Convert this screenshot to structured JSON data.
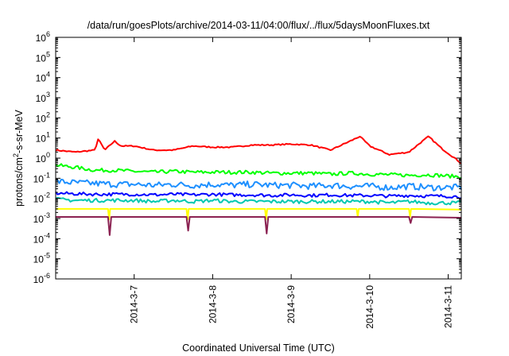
{
  "chart_data": {
    "type": "line",
    "title": "/data/run/goesPlots/archive/2014-03-11/04:00/flux/../flux/5daysMoonFluxes.txt",
    "xlabel": "Coordinated Universal Time (UTC)",
    "ylabel": "protons/cm²-s-sr-MeV",
    "ylabel_parts": {
      "pre": "protons/cm",
      "sup": "2",
      "post": "-s-sr-MeV"
    },
    "yscale": "log",
    "ylim": [
      1e-06,
      1000000.0
    ],
    "xlim": [
      "2014-03-06 00:00",
      "2014-03-11 04:00"
    ],
    "grid": false,
    "yticks": [
      {
        "base": "10",
        "exp": "-6"
      },
      {
        "base": "10",
        "exp": "-5"
      },
      {
        "base": "10",
        "exp": "-4"
      },
      {
        "base": "10",
        "exp": "-3"
      },
      {
        "base": "10",
        "exp": "-2"
      },
      {
        "base": "10",
        "exp": "-1"
      },
      {
        "base": "10",
        "exp": "0"
      },
      {
        "base": "10",
        "exp": "1"
      },
      {
        "base": "10",
        "exp": "2"
      },
      {
        "base": "10",
        "exp": "3"
      },
      {
        "base": "10",
        "exp": "4"
      },
      {
        "base": "10",
        "exp": "5"
      },
      {
        "base": "10",
        "exp": "6"
      }
    ],
    "xticks": [
      {
        "label": "2014-3-7",
        "t": "2014-03-07 00:00"
      },
      {
        "label": "2014-3-8",
        "t": "2014-03-08 00:00"
      },
      {
        "label": "2014-3-9",
        "t": "2014-03-09 00:00"
      },
      {
        "label": "2014-3-10",
        "t": "2014-03-10 00:00"
      },
      {
        "label": "2014-3-11",
        "t": "2014-03-11 00:00"
      }
    ],
    "series": [
      {
        "color": "#ff0000",
        "x": [
          "2014-03-06 00:00",
          "2014-03-06 06:00",
          "2014-03-06 12:00",
          "2014-03-06 13:00",
          "2014-03-06 15:00",
          "2014-03-06 18:00",
          "2014-03-06 20:00",
          "2014-03-07 00:00",
          "2014-03-07 06:00",
          "2014-03-07 12:00",
          "2014-03-07 18:00",
          "2014-03-08 00:00",
          "2014-03-08 06:00",
          "2014-03-08 12:00",
          "2014-03-08 18:00",
          "2014-03-09 00:00",
          "2014-03-09 06:00",
          "2014-03-09 12:00",
          "2014-03-09 18:00",
          "2014-03-09 21:00",
          "2014-03-10 00:00",
          "2014-03-10 06:00",
          "2014-03-10 12:00",
          "2014-03-10 15:00",
          "2014-03-10 18:00",
          "2014-03-10 22:00",
          "2014-03-11 02:00",
          "2014-03-11 04:00"
        ],
        "y": [
          2.5,
          2.0,
          2.5,
          9.0,
          2.5,
          7.0,
          4.0,
          4.0,
          2.5,
          2.5,
          4.0,
          3.5,
          3.5,
          4.5,
          4.5,
          5.0,
          4.5,
          2.5,
          7.0,
          12.0,
          4.0,
          1.5,
          2.0,
          5.0,
          12.0,
          3.0,
          1.0,
          0.55
        ]
      },
      {
        "color": "#00ff00",
        "x": [
          "2014-03-06 00:00",
          "2014-03-06 06:00",
          "2014-03-06 12:00",
          "2014-03-06 18:00",
          "2014-03-07 00:00",
          "2014-03-07 06:00",
          "2014-03-07 12:00",
          "2014-03-07 18:00",
          "2014-03-08 00:00",
          "2014-03-08 06:00",
          "2014-03-08 12:00",
          "2014-03-08 18:00",
          "2014-03-09 00:00",
          "2014-03-09 06:00",
          "2014-03-09 12:00",
          "2014-03-09 18:00",
          "2014-03-10 00:00",
          "2014-03-10 06:00",
          "2014-03-10 12:00",
          "2014-03-10 18:00",
          "2014-03-11 00:00",
          "2014-03-11 04:00"
        ],
        "y": [
          0.45,
          0.35,
          0.25,
          0.25,
          0.22,
          0.2,
          0.22,
          0.2,
          0.2,
          0.2,
          0.2,
          0.18,
          0.18,
          0.18,
          0.16,
          0.18,
          0.16,
          0.15,
          0.14,
          0.15,
          0.13,
          0.12
        ]
      },
      {
        "color": "#1e90ff",
        "x": [
          "2014-03-06 00:00",
          "2014-03-06 06:00",
          "2014-03-06 12:00",
          "2014-03-06 18:00",
          "2014-03-07 00:00",
          "2014-03-07 06:00",
          "2014-03-07 12:00",
          "2014-03-07 18:00",
          "2014-03-08 00:00",
          "2014-03-08 06:00",
          "2014-03-08 12:00",
          "2014-03-08 18:00",
          "2014-03-09 00:00",
          "2014-03-09 06:00",
          "2014-03-09 12:00",
          "2014-03-09 18:00",
          "2014-03-10 00:00",
          "2014-03-10 06:00",
          "2014-03-10 12:00",
          "2014-03-10 18:00",
          "2014-03-11 00:00",
          "2014-03-11 04:00"
        ],
        "y": [
          0.07,
          0.06,
          0.055,
          0.05,
          0.05,
          0.045,
          0.05,
          0.045,
          0.05,
          0.045,
          0.05,
          0.045,
          0.045,
          0.04,
          0.045,
          0.04,
          0.04,
          0.035,
          0.04,
          0.035,
          0.035,
          0.035
        ]
      },
      {
        "color": "#0000ff",
        "x": [
          "2014-03-06 00:00",
          "2014-03-06 06:00",
          "2014-03-06 12:00",
          "2014-03-06 18:00",
          "2014-03-07 00:00",
          "2014-03-07 06:00",
          "2014-03-07 12:00",
          "2014-03-07 18:00",
          "2014-03-08 00:00",
          "2014-03-08 06:00",
          "2014-03-08 12:00",
          "2014-03-08 18:00",
          "2014-03-09 00:00",
          "2014-03-09 06:00",
          "2014-03-09 12:00",
          "2014-03-09 18:00",
          "2014-03-10 00:00",
          "2014-03-10 06:00",
          "2014-03-10 12:00",
          "2014-03-10 18:00",
          "2014-03-11 00:00",
          "2014-03-11 04:00"
        ],
        "y": [
          0.018,
          0.017,
          0.016,
          0.016,
          0.016,
          0.015,
          0.016,
          0.015,
          0.016,
          0.015,
          0.015,
          0.014,
          0.015,
          0.014,
          0.015,
          0.014,
          0.014,
          0.013,
          0.014,
          0.013,
          0.013,
          0.012
        ]
      },
      {
        "color": "#00c8b0",
        "x": [
          "2014-03-06 00:00",
          "2014-03-06 06:00",
          "2014-03-06 12:00",
          "2014-03-06 18:00",
          "2014-03-07 00:00",
          "2014-03-07 06:00",
          "2014-03-07 12:00",
          "2014-03-07 18:00",
          "2014-03-08 00:00",
          "2014-03-08 06:00",
          "2014-03-08 12:00",
          "2014-03-08 18:00",
          "2014-03-09 00:00",
          "2014-03-09 06:00",
          "2014-03-09 12:00",
          "2014-03-09 18:00",
          "2014-03-10 00:00",
          "2014-03-10 06:00",
          "2014-03-10 12:00",
          "2014-03-10 18:00",
          "2014-03-11 00:00",
          "2014-03-11 04:00"
        ],
        "y": [
          0.009,
          0.008,
          0.008,
          0.008,
          0.008,
          0.007,
          0.008,
          0.007,
          0.008,
          0.007,
          0.007,
          0.007,
          0.007,
          0.007,
          0.007,
          0.007,
          0.007,
          0.006,
          0.007,
          0.006,
          0.006,
          0.006
        ]
      },
      {
        "color": "#ffff00",
        "x": [
          "2014-03-06 00:00",
          "2014-03-06 16:00",
          "2014-03-06 16:20",
          "2014-03-06 16:40",
          "2014-03-07 16:00",
          "2014-03-07 16:20",
          "2014-03-07 16:40",
          "2014-03-08 16:00",
          "2014-03-08 16:20",
          "2014-03-08 16:40",
          "2014-03-09 20:00",
          "2014-03-09 20:20",
          "2014-03-09 20:40",
          "2014-03-10 12:00",
          "2014-03-10 12:20",
          "2014-03-10 12:40",
          "2014-03-11 04:00"
        ],
        "y": [
          0.003,
          0.003,
          0.0009,
          0.003,
          0.003,
          0.0009,
          0.003,
          0.003,
          0.0009,
          0.003,
          0.003,
          0.0012,
          0.003,
          0.003,
          0.0012,
          0.003,
          0.0028
        ]
      },
      {
        "color": "#8b2252",
        "x": [
          "2014-03-06 00:00",
          "2014-03-06 16:00",
          "2014-03-06 16:30",
          "2014-03-06 17:00",
          "2014-03-07 16:00",
          "2014-03-07 16:30",
          "2014-03-07 17:00",
          "2014-03-08 16:00",
          "2014-03-08 16:30",
          "2014-03-08 17:00",
          "2014-03-10 12:00",
          "2014-03-10 12:30",
          "2014-03-10 13:00",
          "2014-03-11 04:00"
        ],
        "y": [
          0.0012,
          0.0012,
          0.00015,
          0.0012,
          0.0012,
          0.00025,
          0.0012,
          0.0012,
          0.00018,
          0.0012,
          0.0012,
          0.0006,
          0.0012,
          0.0011
        ]
      }
    ]
  }
}
